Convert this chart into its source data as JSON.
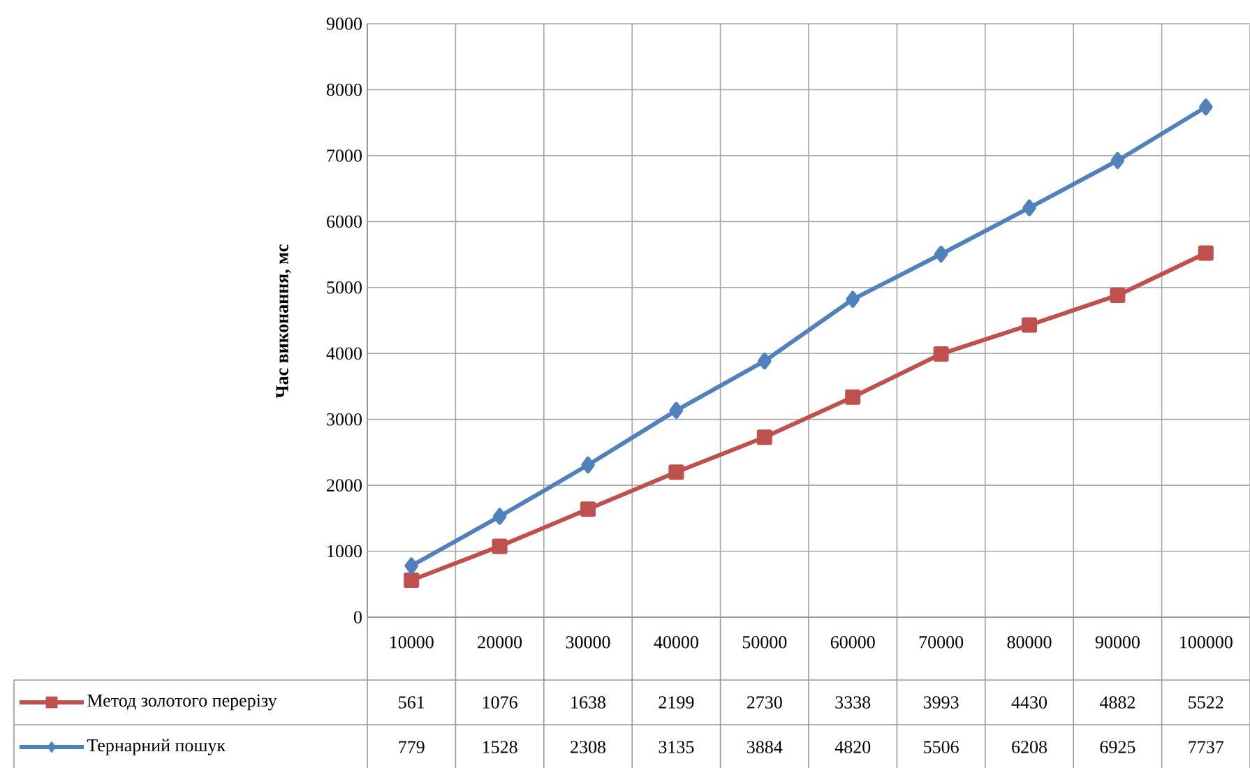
{
  "chart_data": {
    "type": "line",
    "ylabel": "Час виконання, мс",
    "categories": [
      "10000",
      "20000",
      "30000",
      "40000",
      "50000",
      "60000",
      "70000",
      "80000",
      "90000",
      "100000"
    ],
    "series": [
      {
        "name": "Метод золотого перерізу",
        "color": "#c0504d",
        "marker": "square",
        "values": [
          561,
          1076,
          1638,
          2199,
          2730,
          3338,
          3993,
          4430,
          4882,
          5522
        ],
        "value_labels": [
          "561",
          "1076",
          "1638",
          "2199",
          "2730",
          "3338",
          "3993",
          "4430",
          "4882",
          "5522"
        ]
      },
      {
        "name": "Тернарний пошук",
        "color": "#4f81bd",
        "marker": "diamond",
        "values": [
          779,
          1528,
          2308,
          3135,
          3884,
          4820,
          5506,
          6208,
          6925,
          7737
        ],
        "value_labels": [
          "779",
          "1528",
          "2308",
          "3135",
          "3884",
          "4820",
          "5506",
          "6208",
          "6925",
          "7737"
        ]
      }
    ],
    "ylim": [
      0,
      9000
    ],
    "yticks": [
      0,
      1000,
      2000,
      3000,
      4000,
      5000,
      6000,
      7000,
      8000,
      9000
    ],
    "grid": true,
    "legend": "bottom"
  }
}
